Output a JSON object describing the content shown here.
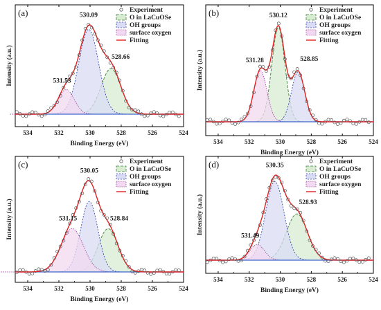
{
  "colors": {
    "experiment_marker": "#555555",
    "o_lacuose_line": "#3f7f3f",
    "o_lacuose_fill": "#d8ecd2",
    "oh_line": "#3346b0",
    "oh_fill": "#d9dcf4",
    "surface_line": "#a64aa8",
    "surface_fill": "#f1d9f0",
    "fitting": "#e32020",
    "baseline": "#3a63c9",
    "axis": "#000000"
  },
  "chart_data": [
    {
      "type": "line",
      "panel_label": "(a)",
      "xlabel": "Binding Energy (eV)",
      "ylabel": "Intensity (a.u.)",
      "x_ticks": [
        534,
        532,
        530,
        528,
        526,
        524
      ],
      "xlim": [
        534.8,
        524
      ],
      "legend": [
        "Experiment",
        "O in LaCuOSe",
        "OH groups",
        "surface oxygen",
        "Fitting"
      ],
      "legend_position": "top-right",
      "peak_labels": [
        "531.53",
        "530.09",
        "528.66"
      ],
      "series": [
        {
          "name": "O in LaCuOSe",
          "center": 528.66,
          "amplitude": 0.5,
          "fwhm": 1.5
        },
        {
          "name": "OH groups",
          "center": 530.09,
          "amplitude": 0.93,
          "fwhm": 1.5
        },
        {
          "name": "surface oxygen",
          "center": 531.53,
          "amplitude": 0.27,
          "fwhm": 1.2
        }
      ]
    },
    {
      "type": "line",
      "panel_label": "(b)",
      "xlabel": "Binding Energy (eV)",
      "ylabel": "Intensity (a.u.)",
      "x_ticks": [
        534,
        532,
        530,
        528,
        526,
        524
      ],
      "xlim": [
        534.8,
        524
      ],
      "legend": [
        "Experiment",
        "O in LaCuOSe",
        "OH groups",
        "surface oxygen",
        "Fitting"
      ],
      "legend_position": "top-right",
      "peak_labels": [
        "531.28",
        "530.12",
        "528.85"
      ],
      "series": [
        {
          "name": "O in LaCuOSe",
          "center": 530.12,
          "amplitude": 0.85,
          "fwhm": 1.0
        },
        {
          "name": "OH groups",
          "center": 528.85,
          "amplitude": 0.45,
          "fwhm": 1.0
        },
        {
          "name": "surface oxygen",
          "center": 531.28,
          "amplitude": 0.46,
          "fwhm": 1.0
        }
      ]
    },
    {
      "type": "line",
      "panel_label": "(c)",
      "xlabel": "Binding Energy (eV)",
      "ylabel": "Intensity (a.u.)",
      "x_ticks": [
        534,
        532,
        530,
        528,
        526,
        524
      ],
      "xlim": [
        534.8,
        524
      ],
      "legend": [
        "Experiment",
        "O in LaCuOSe",
        "OH groups",
        "surface oxygen",
        "Fitting"
      ],
      "legend_position": "top-right",
      "peak_labels": [
        "531.15",
        "530.05",
        "528.84"
      ],
      "series": [
        {
          "name": "O in LaCuOSe",
          "center": 528.84,
          "amplitude": 0.4,
          "fwhm": 1.5
        },
        {
          "name": "OH groups",
          "center": 530.05,
          "amplitude": 0.65,
          "fwhm": 1.3
        },
        {
          "name": "surface oxygen",
          "center": 531.15,
          "amplitude": 0.4,
          "fwhm": 1.7
        }
      ]
    },
    {
      "type": "line",
      "panel_label": "(d)",
      "xlabel": "Binding Energy (eV)",
      "ylabel": "Intensity (a.u.)",
      "x_ticks": [
        534,
        532,
        530,
        528,
        526,
        524
      ],
      "xlim": [
        534.8,
        524
      ],
      "legend": [
        "Experiment",
        "O in LaCuOSe",
        "OH groups",
        "surface oxygen",
        "Fitting"
      ],
      "legend_position": "top-right",
      "peak_labels": [
        "531.49",
        "530.35",
        "528.93"
      ],
      "series": [
        {
          "name": "O in LaCuOSe",
          "center": 528.93,
          "amplitude": 0.5,
          "fwhm": 1.6
        },
        {
          "name": "OH groups",
          "center": 530.35,
          "amplitude": 0.85,
          "fwhm": 1.4
        },
        {
          "name": "surface oxygen",
          "center": 531.49,
          "amplitude": 0.17,
          "fwhm": 1.1
        }
      ]
    }
  ]
}
